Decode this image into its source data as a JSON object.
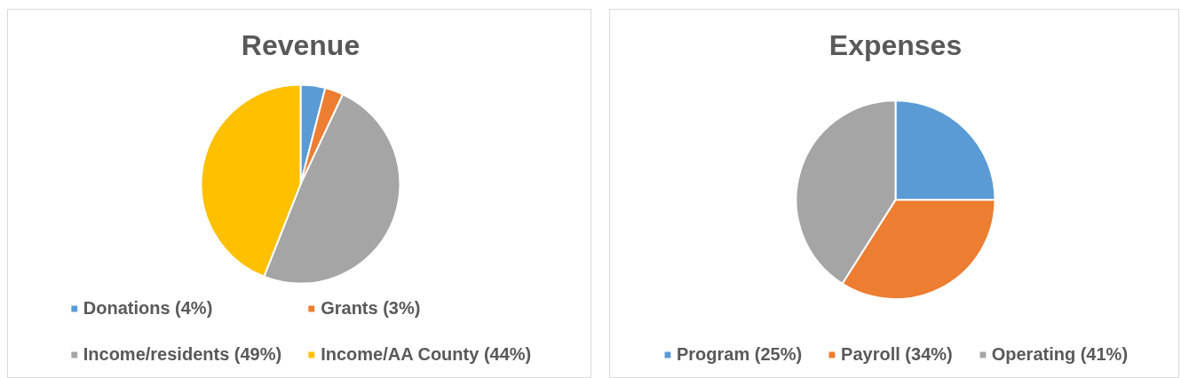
{
  "chart_data": [
    {
      "type": "pie",
      "title": "Revenue",
      "categories": [
        "Donations (4%)",
        "Grants (3%)",
        "Income/residents (49%)",
        "Income/AA County (44%)"
      ],
      "values": [
        4,
        3,
        49,
        44
      ],
      "colors": [
        "#5b9bd5",
        "#ed7d31",
        "#a5a5a5",
        "#ffc000"
      ],
      "legend": "bottom"
    },
    {
      "type": "pie",
      "title": "Expenses",
      "categories": [
        "Program (25%)",
        "Payroll (34%)",
        "Operating (41%)"
      ],
      "values": [
        25,
        34,
        41
      ],
      "colors": [
        "#5b9bd5",
        "#ed7d31",
        "#a5a5a5"
      ],
      "legend": "bottom"
    }
  ]
}
